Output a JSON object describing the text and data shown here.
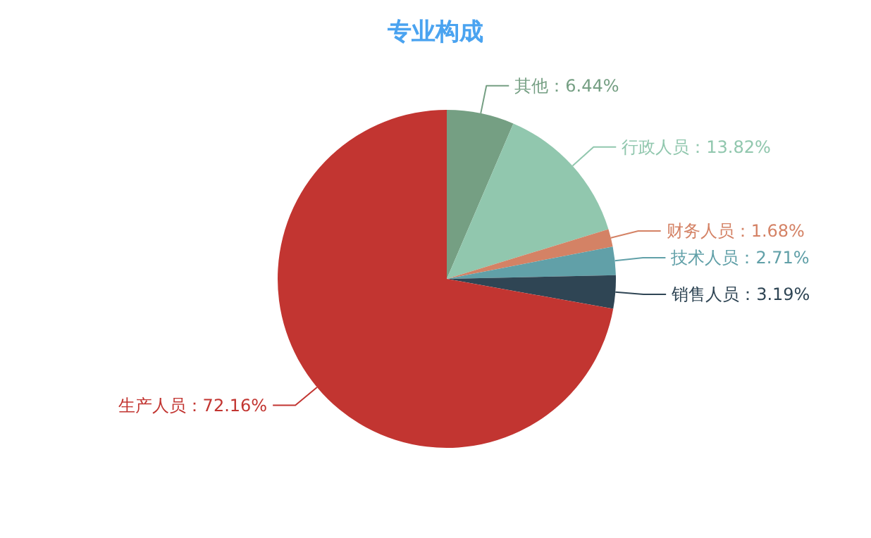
{
  "chart_data": {
    "type": "pie",
    "title": "专业构成",
    "categories": [
      "其他",
      "行政人员",
      "财务人员",
      "技术人员",
      "销售人员",
      "生产人员"
    ],
    "values": [
      6.44,
      13.82,
      1.68,
      2.71,
      3.19,
      72.16
    ],
    "value_labels": [
      "6.44%",
      "13.82%",
      "1.68%",
      "2.71%",
      "3.19%",
      "72.16%"
    ],
    "colors": [
      "#759f83",
      "#91c7ae",
      "#d48265",
      "#61a0a8",
      "#2f4554",
      "#c23531"
    ]
  }
}
